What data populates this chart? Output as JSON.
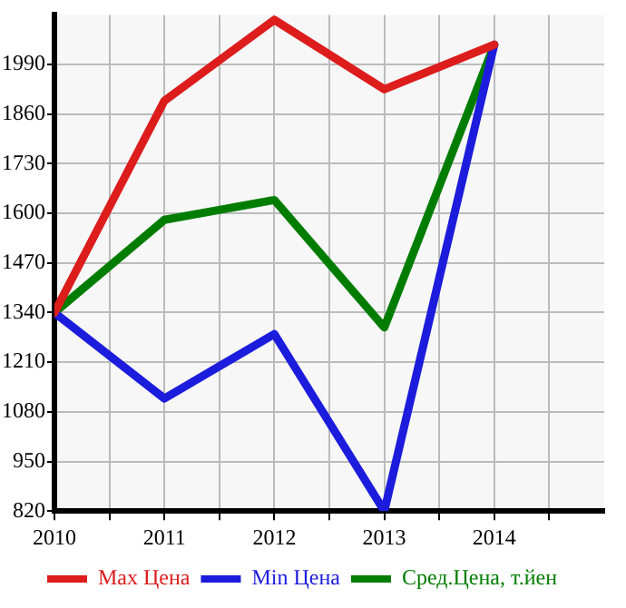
{
  "chart_data": {
    "type": "line",
    "x": [
      2010,
      2011,
      2012,
      2013,
      2014
    ],
    "series": [
      {
        "name": "Max Цена",
        "color": "#dd1c1c",
        "values": [
          1340,
          1895,
          2107,
          1925,
          2042
        ]
      },
      {
        "name": "Min Цена",
        "color": "#1c1cdd",
        "values": [
          1340,
          1115,
          1284,
          820,
          2042
        ]
      },
      {
        "name": "Сред.Цена, т.йен",
        "color": "#007d00",
        "values": [
          1340,
          1583,
          1635,
          1301,
          2042
        ]
      }
    ],
    "xlim": [
      2010,
      2015
    ],
    "xticks": [
      2010,
      {
        "value": 2010.5,
        "label": null
      },
      2011,
      {
        "value": 2011.5,
        "label": null
      },
      2012,
      {
        "value": 2012.5,
        "label": null
      },
      2013,
      {
        "value": 2013.5,
        "label": null
      },
      2014,
      {
        "value": 2014.5,
        "label": null
      }
    ],
    "ylim": [
      820,
      2120
    ],
    "yticks": [
      820,
      950,
      1080,
      1210,
      1340,
      1470,
      1600,
      1730,
      1860,
      1990
    ],
    "grid": true,
    "legend": "bottom",
    "marker": "none",
    "line_style": "solid"
  }
}
